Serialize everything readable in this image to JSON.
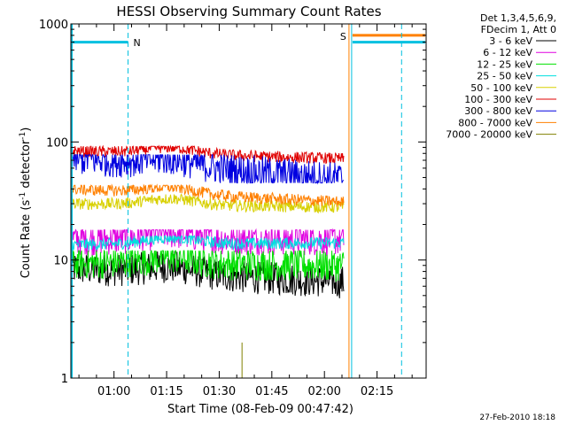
{
  "chart_data": {
    "type": "line",
    "title": "HESSI Observing Summary Count Rates",
    "xlabel": "Start Time (08-Feb-09 00:47:42)",
    "ylabel_main": "Count Rate (s",
    "ylabel_sup1": "-1",
    "ylabel_mid": " detector",
    "ylabel_sup2": "-1",
    "ylabel_end": ")",
    "yscale": "log",
    "ylim": [
      1,
      1000
    ],
    "xlim": [
      "00:47:42",
      "02:29:00"
    ],
    "x_ticks": [
      "01:00",
      "01:15",
      "01:30",
      "01:45",
      "02:00",
      "02:15"
    ],
    "y_ticks": [
      "1",
      "10",
      "100",
      "1000"
    ],
    "legend_header": [
      "Det 1,3,4,5,6,9,",
      "FDecim 1, Att 0"
    ],
    "legend_position": "right",
    "series": [
      {
        "name": "3 - 6 keV",
        "color": "#000000",
        "values_start_end": [
          8.5,
          6.5
        ],
        "min": 4.5,
        "max": 12
      },
      {
        "name": "6 - 12 keV",
        "color": "#e000e0",
        "values_start_end": [
          15,
          15
        ],
        "min": 10,
        "max": 18
      },
      {
        "name": "12 - 25 keV",
        "color": "#00e000",
        "values_start_end": [
          9.5,
          9
        ],
        "min": 6,
        "max": 12
      },
      {
        "name": "25 - 50 keV",
        "color": "#00e0e0",
        "values_start_end": [
          13.5,
          14
        ],
        "min": 10,
        "max": 16
      },
      {
        "name": "50 - 100 keV",
        "color": "#d8d000",
        "values_start_end": [
          30,
          28
        ],
        "min": 24,
        "max": 36
      },
      {
        "name": "100 - 300 keV",
        "color": "#e00000",
        "values_start_end": [
          84,
          72
        ],
        "min": 66,
        "max": 92
      },
      {
        "name": "300 - 800 keV",
        "color": "#0000e0",
        "values_start_end": [
          73,
          49
        ],
        "min": 45,
        "max": 78
      },
      {
        "name": "800 - 7000 keV",
        "color": "#ff8000",
        "values_start_end": [
          40,
          31
        ],
        "min": 28,
        "max": 43
      },
      {
        "name": "7000 - 20000 keV",
        "color": "#808000",
        "values_start_end": [
          1,
          1
        ],
        "min": 1,
        "max": 2
      }
    ],
    "flags": [
      {
        "label": "N",
        "color": "#00c0e0",
        "time": "01:04"
      },
      {
        "label": "S",
        "color": "#ff8000",
        "time": "02:07"
      }
    ]
  },
  "footer_timestamp": "27-Feb-2010 18:18"
}
